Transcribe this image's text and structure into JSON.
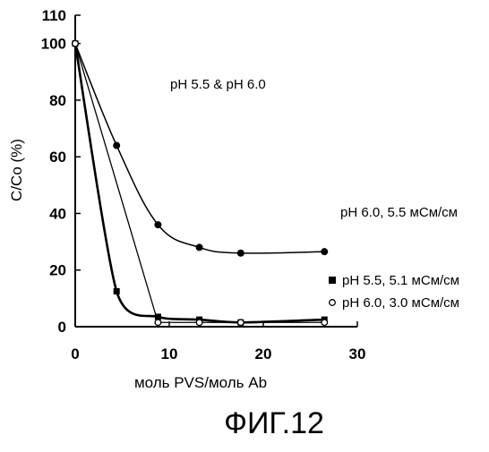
{
  "figure": {
    "caption": "ФИГ.12"
  },
  "chart_data": {
    "type": "scatter",
    "title": "",
    "xlabel": "моль PVS/моль Ab",
    "ylabel": "C/Co (%)",
    "xlim": [
      0,
      30
    ],
    "ylim": [
      0,
      110
    ],
    "x_ticks": [
      0,
      10,
      20,
      30
    ],
    "y_ticks": [
      0,
      20,
      40,
      60,
      80,
      100,
      110
    ],
    "grid": false,
    "annotations": [
      {
        "text": "pH 5.5 & pH 6.0"
      }
    ],
    "series": [
      {
        "name": "pH 6.0, 5.5 мСм/см",
        "marker": "filled-circle",
        "points": [
          [
            0,
            100
          ],
          [
            4.4,
            64
          ],
          [
            8.8,
            36
          ],
          [
            13.2,
            28
          ],
          [
            17.6,
            26
          ],
          [
            26.5,
            26.5
          ]
        ],
        "color": "#000000"
      },
      {
        "name": "pH 5.5, 5.1 мСм/см",
        "marker": "filled-square",
        "points": [
          [
            0,
            100
          ],
          [
            4.4,
            12.5
          ],
          [
            8.8,
            3.5
          ],
          [
            13.2,
            2.5
          ],
          [
            17.6,
            1.5
          ],
          [
            26.5,
            2.5
          ]
        ],
        "color": "#000000"
      },
      {
        "name": "pH 6.0, 3.0 мСм/см",
        "marker": "open-circle",
        "points": [
          [
            0,
            100
          ],
          [
            8.8,
            1.5
          ],
          [
            13.2,
            1.5
          ],
          [
            17.6,
            1.5
          ],
          [
            26.5,
            1.5
          ]
        ],
        "color": "#000000"
      }
    ]
  }
}
